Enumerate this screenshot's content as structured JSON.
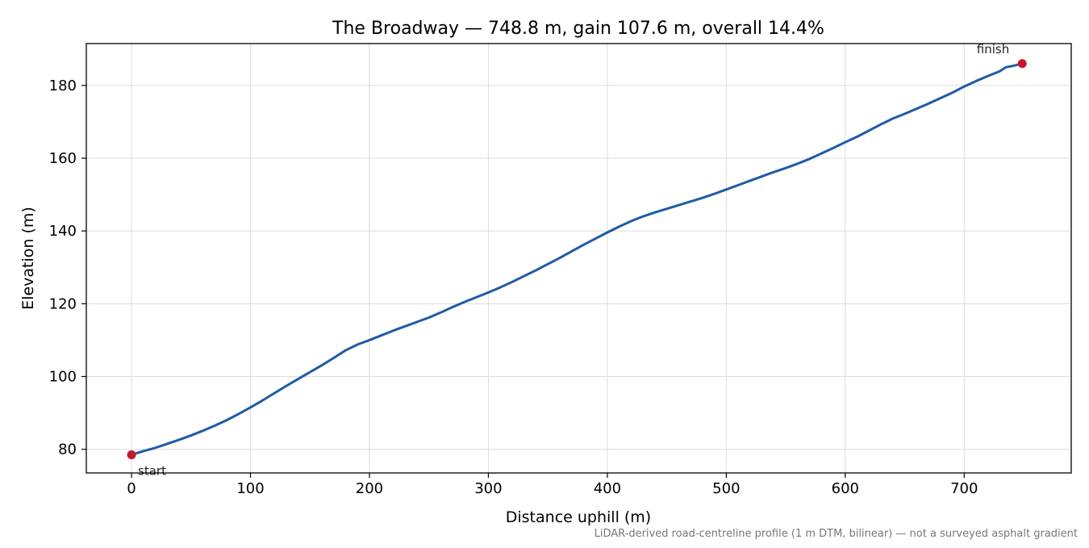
{
  "chart_data": {
    "type": "line",
    "title": "The Broadway — 748.8 m, gain 107.6 m, overall 14.4%",
    "xlabel": "Distance uphill (m)",
    "ylabel": "Elevation (m)",
    "xlim": [
      -38,
      790
    ],
    "ylim": [
      73.5,
      191.5
    ],
    "x_ticks": [
      0,
      100,
      200,
      300,
      400,
      500,
      600,
      700
    ],
    "y_ticks": [
      80,
      100,
      120,
      140,
      160,
      180
    ],
    "grid": true,
    "line_color": "#1f5aa6",
    "marker_color": "#c21a2b",
    "series": [
      {
        "x": [
          0,
          10,
          20,
          30,
          40,
          50,
          60,
          70,
          80,
          90,
          100,
          110,
          120,
          130,
          140,
          150,
          160,
          170,
          180,
          190,
          200,
          210,
          220,
          230,
          240,
          250,
          260,
          270,
          280,
          290,
          300,
          310,
          320,
          330,
          340,
          350,
          360,
          370,
          380,
          390,
          400,
          410,
          420,
          430,
          440,
          450,
          460,
          470,
          480,
          490,
          500,
          510,
          520,
          530,
          540,
          550,
          560,
          570,
          580,
          590,
          600,
          610,
          620,
          630,
          640,
          650,
          660,
          670,
          680,
          690,
          700,
          710,
          720,
          730,
          735,
          740,
          748.8
        ],
        "y": [
          78.5,
          79.5,
          80.4,
          81.5,
          82.6,
          83.8,
          85.1,
          86.5,
          88.0,
          89.7,
          91.5,
          93.4,
          95.4,
          97.4,
          99.3,
          101.2,
          103.1,
          105.1,
          107.2,
          108.8,
          110.0,
          111.3,
          112.6,
          113.8,
          115.0,
          116.2,
          117.6,
          119.1,
          120.5,
          121.8,
          123.1,
          124.5,
          126.0,
          127.6,
          129.2,
          130.9,
          132.6,
          134.4,
          136.2,
          137.9,
          139.6,
          141.2,
          142.7,
          144.0,
          145.1,
          146.1,
          147.1,
          148.1,
          149.1,
          150.2,
          151.4,
          152.6,
          153.8,
          155.0,
          156.2,
          157.3,
          158.5,
          159.8,
          161.3,
          162.8,
          164.4,
          165.9,
          167.6,
          169.3,
          170.9,
          172.2,
          173.6,
          175.0,
          176.5,
          178.0,
          179.7,
          181.2,
          182.6,
          183.9,
          185.0,
          185.3,
          186.0
        ]
      }
    ],
    "markers": [
      {
        "x": 0,
        "y": 78.5,
        "label": "start"
      },
      {
        "x": 748.8,
        "y": 186.0,
        "label": "finish"
      }
    ],
    "footnote": "LiDAR-derived road-centreline profile (1 m DTM, bilinear) — not a surveyed asphalt gradient"
  }
}
